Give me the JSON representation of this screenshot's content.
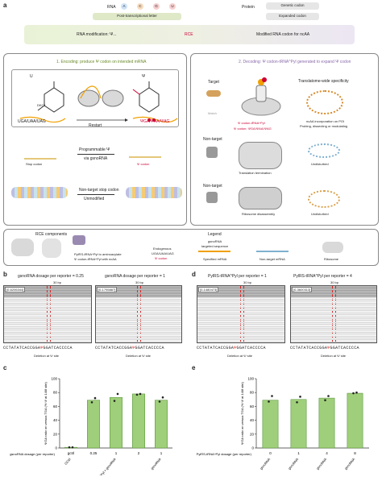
{
  "panel_a": {
    "letter": "a",
    "rna_label": "RNA",
    "rna_letters": [
      "A",
      "C",
      "G",
      "U"
    ],
    "protein_label": "Protein",
    "ptl_label": "Post-transcriptional letter",
    "genetic_codon": "Genetic codon",
    "expanded_codon": "Expanded codon",
    "rna_mod": "RNA modification: Ψ...",
    "rce": "RCE",
    "modified_codon": "Modified RNA codon for ncAA",
    "step1": "1. Encoding: produce Ψ codon on intended mRNA",
    "step2": "2. Decoding: Ψ codon-tRNA^Pyl generated to expand Ψ codon",
    "uridine": "U",
    "ugauaauag": "UGA/UAA/UAG",
    "restart": "Restart",
    "psi_label": "Ψ",
    "psi_codons": "ΨGA/ΨAA/ΨAG",
    "dkc1": "DKC1",
    "programmable": "Programmable Ψ",
    "via_guide": "via gsnoRNA",
    "stop_codon": "Stop codon",
    "psi_codon": "Ψ codon",
    "nontarget_stop": "Non-target stop codon",
    "unmodified": "Unmodified",
    "target": "Target",
    "match": "Match",
    "non_target": "Non-target",
    "psi_trna": "Ψ codon-tRNA^Pyl",
    "psi_codon_seq": "Ψ codon: ΨGA/ΨAA/ΨAG",
    "translatome": "Translatome-wide specificity",
    "ncaa_inc": "ncAA incorporation on POI",
    "probing": "Probing, dissecting or modulating",
    "translation_term": "Translation termination",
    "ribosome_dis": "Ribosome disassembly",
    "undisturbed_1": "Undisturbed",
    "undisturbed_2": "Undisturbed",
    "rce_components": "RCE components",
    "pyl_rs": "PylRS-tRNA^Pyl to aminoacylate",
    "pyl_rs_2": "Ψ codon-tRNA^Pyl with ncAA",
    "legend_title": "Legend",
    "endogenous": "Endogenous",
    "endo_codons": "UGA/UAA/UAG",
    "psi_codon_leg": "Ψ codon",
    "gsnorna_ts": "gsnoRNA",
    "gsnorna_ts2": "targeted sequence",
    "specified_mrna": "Specified mRNA",
    "nontarget_mrna": "Non-target mRNA",
    "ribosome": "Ribosome"
  },
  "panel_b": {
    "letter": "b",
    "cond1": "gsnoRNA dosage per reporter = 0.25",
    "cond2": "gsnoRNA dosage per reporter = 1",
    "scale": "30 bp",
    "reads1": "[0-6206344]",
    "reads2": "[0-1795887]",
    "seq1a": "CCTATATCACCGGA",
    "seq1b": "GGATCACCCCA",
    "seq2a": "CCTATATCACCGGA",
    "seq2b": "GGATCACCCCA",
    "deletion1": "Deletion at Ψ site",
    "deletion2": "Deletion at Ψ site"
  },
  "panel_d": {
    "letter": "d",
    "cond1": "PylRS-tRNA^Pyl per reporter = 1",
    "cond2": "PylRS-tRNA^Pyl per reporter = 4",
    "scale": "30 bp",
    "reads1": "[0-1480473]",
    "reads2": "[0-3600313]",
    "seq1a": "CCTATATCACCGGA",
    "seq1b": "GGATCACCCCA",
    "seq2a": "CCTATATCACCGGA",
    "seq2b": "GGATCACCCCA",
    "deletion1": "Deletion at Ψ site",
    "deletion2": "Deletion at Ψ site"
  },
  "chart_data": [
    {
      "panel": "c",
      "type": "bar",
      "ylabel": "ΨGA ratio on versus TGA (% Ψ at 14/8 site)",
      "ylim": [
        0,
        100
      ],
      "yticks": [
        0,
        20,
        40,
        60,
        80,
        100
      ],
      "categories": [
        "gctrl",
        "0.25",
        "1",
        "2",
        "1"
      ],
      "values": [
        1,
        69,
        73,
        78,
        69
      ],
      "points": [
        [
          1,
          1
        ],
        [
          66,
          72
        ],
        [
          68,
          78
        ],
        [
          77,
          78
        ],
        [
          67,
          73
        ]
      ],
      "xlabel": "gsnoRNA dosage (per reporter)",
      "group_labels": [
        "GCtrl",
        "PylRS-tRNA^Pyl + gsnoRNA",
        "gsnoRNA"
      ]
    },
    {
      "panel": "e",
      "type": "bar",
      "ylabel": "ΨGA ratio on versus TGA (% Ψ at 14/8 site)",
      "ylim": [
        0,
        100
      ],
      "yticks": [
        0,
        20,
        40,
        60,
        80,
        100
      ],
      "categories": [
        "0",
        "1",
        "4",
        "8"
      ],
      "values": [
        69,
        70,
        72,
        79
      ],
      "points": [
        [
          67,
          75
        ],
        [
          66,
          74
        ],
        [
          69,
          75
        ],
        [
          79,
          80
        ]
      ],
      "xlabel": "PylRS-tRNA^Pyl dosage (per reporter)",
      "group_labels": [
        "gsnoRNA",
        "gsnoRNA",
        "gsnoRNA",
        "gsnoRNA"
      ]
    }
  ],
  "colors": {
    "green_bar": "#9fcf7a",
    "deletion_red": "#d22",
    "band_green": "#e9f2d6",
    "band_purple": "#ece6f3"
  }
}
